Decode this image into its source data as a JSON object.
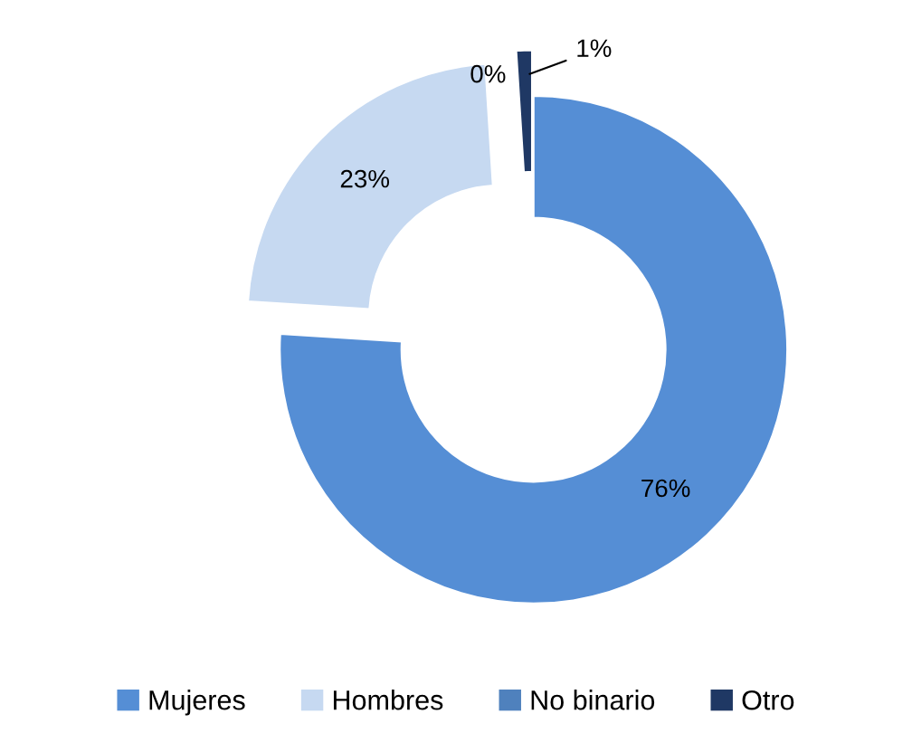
{
  "chart_data": {
    "type": "donut",
    "categories": [
      "Mujeres",
      "Hombres",
      "No binario",
      "Otro"
    ],
    "values": [
      76,
      23,
      0,
      1
    ],
    "colors": [
      "#558ed5",
      "#c6d9f1",
      "#4f81bd",
      "#1f3864"
    ],
    "value_labels": [
      "76%",
      "23%",
      "0%",
      "1%"
    ],
    "legend": "bottom"
  }
}
